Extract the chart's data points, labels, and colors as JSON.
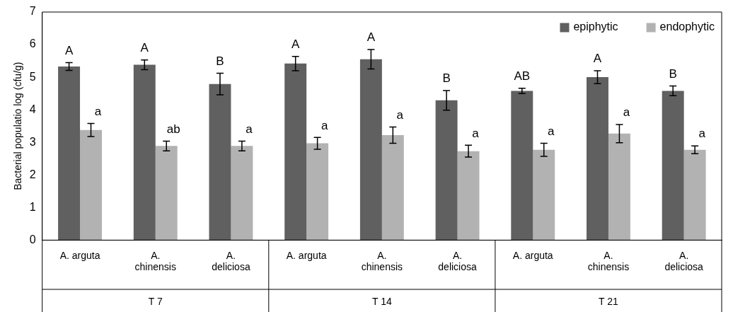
{
  "chart_data": {
    "type": "bar",
    "ylabel": "Bacterial populatio log (cfu/g)",
    "categories": [
      "A. arguta",
      "A. chinensis",
      "A. deliciosa",
      "A. arguta",
      "A. chinensis",
      "A. deliciosa",
      "A. arguta",
      "A. chinensis",
      "A. deliciosa"
    ],
    "series": [
      {
        "name": "epiphytic",
        "color": "#606060",
        "values": [
          5.33,
          5.38,
          4.79,
          5.42,
          5.55,
          4.29,
          4.58,
          5.0,
          4.58
        ],
        "errors": [
          0.12,
          0.15,
          0.33,
          0.22,
          0.3,
          0.3,
          0.08,
          0.2,
          0.15
        ],
        "value_labels": [
          "A",
          "A",
          "B",
          "A",
          "A",
          "B",
          "AB",
          "A",
          "B"
        ]
      },
      {
        "name": "endophytic",
        "color": "#b2b2b2",
        "values": [
          3.38,
          2.89,
          2.89,
          2.97,
          3.22,
          2.73,
          2.77,
          3.27,
          2.77
        ],
        "errors": [
          0.2,
          0.15,
          0.15,
          0.18,
          0.25,
          0.18,
          0.2,
          0.28,
          0.12
        ],
        "value_labels": [
          "a",
          "ab",
          "a",
          "a",
          "a",
          "a",
          "a",
          "a",
          "a"
        ]
      }
    ],
    "annotations": [
      "T 7",
      "T 14",
      "T 21"
    ],
    "ylim": [
      0,
      7
    ],
    "yticks": [
      0,
      1,
      2,
      3,
      4,
      5,
      6,
      7
    ],
    "grid": false,
    "legend": "top right"
  }
}
